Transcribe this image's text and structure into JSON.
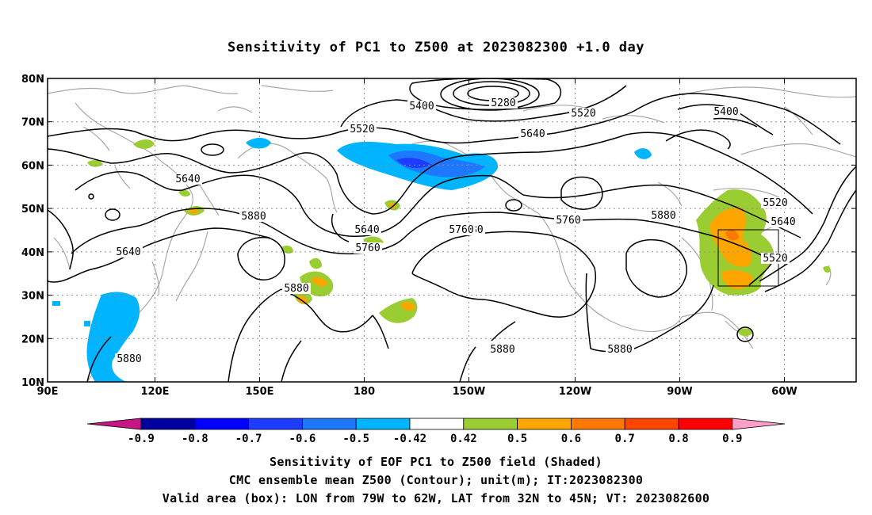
{
  "title": "Sensitivity of PC1 to Z500 at 2023082300 +1.0 day",
  "lon_ticks": [
    "90E",
    "120E",
    "150E",
    "180",
    "150W",
    "120W",
    "90W",
    "60W"
  ],
  "lat_ticks": [
    "10N",
    "20N",
    "30N",
    "40N",
    "50N",
    "60N",
    "70N",
    "80N"
  ],
  "contour_labels": [
    "5400",
    "5280",
    "5520",
    "5640",
    "5400",
    "5520",
    "5640",
    "5640",
    "5880",
    "5520",
    "5880",
    "5640",
    "5760",
    "5880",
    "5760",
    "5640",
    "5760",
    "5880",
    "5880",
    "5880",
    "5880",
    "5760",
    "5520"
  ],
  "colorbar": {
    "tick_labels": [
      "-0.9",
      "-0.8",
      "-0.7",
      "-0.6",
      "-0.5",
      "-0.42",
      "0.42",
      "0.5",
      "0.6",
      "0.7",
      "0.8",
      "0.9"
    ],
    "colors": [
      "#0000a0",
      "#0000ff",
      "#1e3cff",
      "#1e78ff",
      "#00b4ff",
      "#ffffff",
      "#9acd32",
      "#ffa500",
      "#ff7800",
      "#ff4500",
      "#ff0000"
    ],
    "under_color": "#c71585",
    "over_color": "#ff9fc8"
  },
  "captions": {
    "line1": "Sensitivity of EOF PC1 to Z500 field (Shaded)",
    "line2": "CMC ensemble mean Z500 (Contour); unit(m); IT:2023082300",
    "line3": "Valid area (box): LON from 79W to 62W, LAT from 32N to 45N; VT: 2023082600"
  },
  "valid_box": {
    "lon_min": -79,
    "lon_max": -62,
    "lat_min": 32,
    "lat_max": 45
  }
}
